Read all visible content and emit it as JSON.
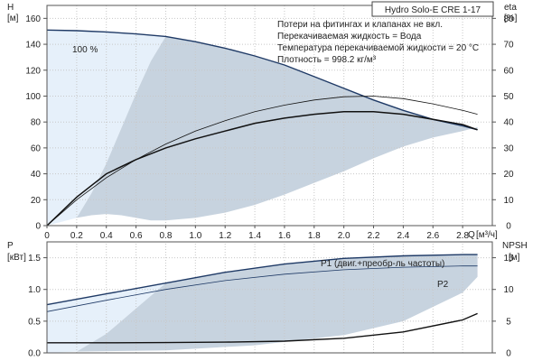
{
  "title": "Hydro Solo-E CRE 1-17",
  "notes": [
    "Потери на фитингах и клапанах не вкл.",
    "Перекачиваемая жидкость = Вода",
    "Температура перекачиваемой жидкости = 20 °C",
    "Плотность = 998.2 кг/м³"
  ],
  "colors": {
    "region": "#c7d3df",
    "region_light": "#e6f0fa",
    "curve_dark": "#1f3a66",
    "curve_black": "#111111"
  },
  "chart_data": [
    {
      "type": "line",
      "id": "top",
      "x_axis": {
        "label": "Q",
        "unit": "[м³/ч]",
        "range": [
          0,
          3.0
        ],
        "ticks": [
          "0",
          "0.2",
          "0.4",
          "0.6",
          "0.8",
          "1.0",
          "1.2",
          "1.4",
          "1.6",
          "1.8",
          "2.0",
          "2.2",
          "2.4",
          "2.6",
          "2.8"
        ]
      },
      "y_left": {
        "label": "H",
        "unit": "[м]",
        "range": [
          0,
          170
        ],
        "ticks": [
          "0",
          "20",
          "40",
          "60",
          "80",
          "100",
          "120",
          "140",
          "160"
        ]
      },
      "y_right": {
        "label": "eta",
        "unit": "[%]",
        "range": [
          0,
          85
        ],
        "ticks": [
          "0",
          "10",
          "20",
          "30",
          "40",
          "50",
          "60",
          "70",
          "80"
        ]
      },
      "grid": true,
      "speed_label": "100 %",
      "series": [
        {
          "role": "H_100",
          "x": [
            0,
            0.2,
            0.4,
            0.6,
            0.8,
            1.0,
            1.2,
            1.4,
            1.6,
            1.8,
            2.0,
            2.2,
            2.4,
            2.6,
            2.8,
            2.9
          ],
          "y": [
            151,
            150.5,
            149.5,
            148,
            146,
            142,
            137,
            131,
            124,
            115,
            106,
            97,
            89,
            82,
            77,
            74
          ]
        },
        {
          "role": "H_thin",
          "x": [
            0,
            0.2,
            0.4,
            0.6,
            0.8,
            1.0,
            1.2,
            1.4,
            1.6,
            1.8,
            2.0,
            2.2,
            2.4,
            2.6,
            2.8,
            2.9
          ],
          "y": [
            0,
            20,
            37,
            51,
            63,
            73,
            81,
            88,
            93,
            97,
            99.5,
            100,
            98,
            94,
            89,
            86
          ]
        },
        {
          "role": "eta",
          "x": [
            0,
            0.2,
            0.4,
            0.6,
            0.8,
            1.0,
            1.2,
            1.4,
            1.6,
            1.8,
            2.0,
            2.2,
            2.4,
            2.6,
            2.8,
            2.9
          ],
          "y": [
            0,
            11,
            20,
            25.5,
            30,
            33.5,
            36.5,
            39.5,
            41.5,
            43,
            44,
            44,
            43,
            41,
            39,
            37
          ]
        }
      ],
      "operating_region": {
        "upper_x": [
          0.8,
          1.0,
          1.2,
          1.4,
          1.6,
          1.8,
          2.0,
          2.2,
          2.4,
          2.6,
          2.8,
          2.9
        ],
        "upper_y": [
          146,
          142,
          137,
          131,
          124,
          115,
          106,
          97,
          89,
          82,
          77,
          74
        ],
        "lower_x": [
          0.2,
          0.3,
          0.4,
          0.5,
          0.6,
          0.7,
          0.8,
          1.0,
          1.2,
          1.4,
          1.6,
          1.8,
          2.0,
          2.2,
          2.4,
          2.6,
          2.8,
          2.9
        ],
        "lower_y": [
          6,
          8,
          9,
          8,
          6,
          4,
          4,
          6,
          10,
          16,
          24,
          33,
          42,
          52,
          61,
          68,
          73,
          76
        ],
        "min_x": [
          0.2,
          0.3,
          0.4,
          0.5,
          0.6,
          0.7,
          0.8
        ],
        "min_y": [
          6,
          25,
          48,
          75,
          102,
          127,
          146
        ]
      }
    },
    {
      "type": "line",
      "id": "bottom",
      "x_axis": {
        "range": [
          0,
          3.0
        ]
      },
      "y_left": {
        "label": "P",
        "unit": "[кВт]",
        "range": [
          0,
          1.75
        ],
        "ticks": [
          "0.0",
          "0.5",
          "1.0",
          "1.5"
        ]
      },
      "y_right": {
        "label": "NPSH",
        "unit": "[м]",
        "range": [
          0,
          17.5
        ],
        "ticks": [
          "0",
          "5",
          "10",
          "15"
        ]
      },
      "grid": true,
      "series": [
        {
          "role": "P1",
          "name": "P1 (двиг.+преобр-ль частоты)",
          "x": [
            0,
            0.4,
            0.8,
            1.2,
            1.6,
            2.0,
            2.4,
            2.8,
            2.9
          ],
          "y": [
            0.76,
            0.93,
            1.1,
            1.27,
            1.4,
            1.49,
            1.53,
            1.55,
            1.55
          ]
        },
        {
          "role": "P2",
          "name": "P2",
          "x": [
            0,
            0.4,
            0.8,
            1.2,
            1.6,
            2.0,
            2.4,
            2.8,
            2.9
          ],
          "y": [
            0.65,
            0.83,
            1.0,
            1.14,
            1.24,
            1.31,
            1.35,
            1.37,
            1.37
          ]
        },
        {
          "role": "NPSH",
          "x": [
            0,
            0.4,
            0.8,
            1.2,
            1.6,
            2.0,
            2.4,
            2.8,
            2.9
          ],
          "y": [
            1.6,
            1.6,
            1.62,
            1.7,
            1.85,
            2.3,
            3.3,
            5.2,
            6.2
          ]
        }
      ],
      "operating_region": {
        "upper_x": [
          0.8,
          1.2,
          1.6,
          2.0,
          2.4,
          2.8,
          2.9
        ],
        "upper_y": [
          1.1,
          1.27,
          1.4,
          1.49,
          1.53,
          1.55,
          1.55
        ],
        "lower_x": [
          0.2,
          0.8,
          1.4,
          2.0,
          2.4,
          2.8,
          2.9
        ],
        "lower_y": [
          0.02,
          0.04,
          0.12,
          0.28,
          0.5,
          0.95,
          1.2
        ],
        "min_x": [
          0.2,
          0.4,
          0.6,
          0.8
        ],
        "min_y": [
          0.02,
          0.3,
          0.7,
          1.1
        ]
      }
    }
  ]
}
